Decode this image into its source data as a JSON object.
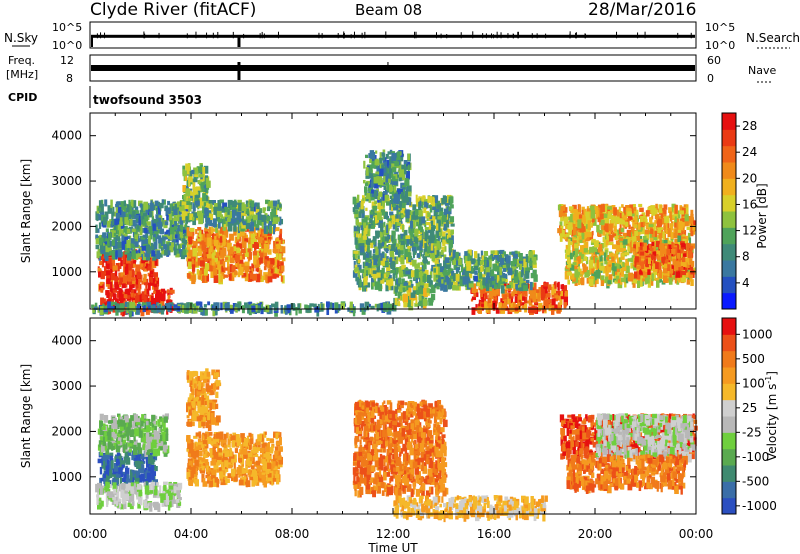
{
  "header": {
    "station": "Clyde River (fitACF)",
    "beam": "Beam 08",
    "date": "28/Mar/2016"
  },
  "noise_panel": {
    "left_label": "N.Sky",
    "left_ticks": [
      "10^5",
      "10^0"
    ],
    "right_ticks": [
      "10^5",
      "10^0"
    ],
    "right_label": "N.Search",
    "level": 0.45
  },
  "freq_panel": {
    "left_label_line1": "Freq.",
    "left_label_line2": "[MHz]",
    "left_ticks": [
      "12",
      "8"
    ],
    "right_ticks": [
      "60",
      "0"
    ],
    "right_label": "Nave",
    "level": 0.5
  },
  "cpid_panel": {
    "label": "CPID",
    "program": "twofsound 3503"
  },
  "chart_data": [
    {
      "type": "heatmap",
      "name": "power",
      "ylabel": "Slant Range [km]",
      "xlabel": "Time UT",
      "x_ticks": [
        "00:00",
        "04:00",
        "08:00",
        "12:00",
        "16:00",
        "20:00",
        "00:00"
      ],
      "xlim_hours": [
        0,
        24
      ],
      "ylim_km": [
        180,
        4500
      ],
      "y_ticks": [
        1000,
        2000,
        3000,
        4000
      ],
      "colorbar": {
        "label": "Power [dB]",
        "ticks": [
          4,
          8,
          12,
          16,
          20,
          24,
          28
        ],
        "range": [
          0,
          30
        ],
        "colors": [
          "#0a1aff",
          "#2450c0",
          "#3a78a0",
          "#3f8a78",
          "#4fa35a",
          "#8ec23e",
          "#d8d02a",
          "#f0b01e",
          "#f08a1a",
          "#f06418",
          "#ea3a14",
          "#e61010"
        ]
      },
      "regions": [
        {
          "t": [
            0.3,
            2.6
          ],
          "r": [
            700,
            1500
          ],
          "v": 27
        },
        {
          "t": [
            0.4,
            3.2
          ],
          "r": [
            180,
            650
          ],
          "v": 29
        },
        {
          "t": [
            0.2,
            3.8
          ],
          "r": [
            1400,
            2600
          ],
          "v": 9
        },
        {
          "t": [
            3.8,
            7.6
          ],
          "r": [
            900,
            2000
          ],
          "v": 22
        },
        {
          "t": [
            3.6,
            4.6
          ],
          "r": [
            2200,
            3400
          ],
          "v": 12
        },
        {
          "t": [
            4.5,
            7.5
          ],
          "r": [
            2000,
            2600
          ],
          "v": 10
        },
        {
          "t": [
            10.4,
            14.3
          ],
          "r": [
            700,
            2700
          ],
          "v": 11
        },
        {
          "t": [
            10.8,
            12.6
          ],
          "r": [
            2700,
            3700
          ],
          "v": 9
        },
        {
          "t": [
            12.0,
            13.5
          ],
          "r": [
            300,
            700
          ],
          "v": 13
        },
        {
          "t": [
            15.0,
            18.8
          ],
          "r": [
            200,
            800
          ],
          "v": 25
        },
        {
          "t": [
            14.3,
            17.6
          ],
          "r": [
            700,
            1500
          ],
          "v": 10
        },
        {
          "t": [
            18.5,
            23.9
          ],
          "r": [
            1800,
            2500
          ],
          "v": 20
        },
        {
          "t": [
            18.8,
            23.8
          ],
          "r": [
            800,
            1800
          ],
          "v": 17
        },
        {
          "t": [
            21.5,
            23.8
          ],
          "r": [
            1000,
            1700
          ],
          "v": 24
        },
        {
          "t": [
            0.0,
            12.0
          ],
          "r": [
            180,
            350
          ],
          "v": 8
        }
      ]
    },
    {
      "type": "heatmap",
      "name": "velocity",
      "ylabel": "Slant Range [km]",
      "xlabel": "Time UT",
      "x_ticks": [
        "00:00",
        "04:00",
        "08:00",
        "12:00",
        "16:00",
        "20:00",
        "00:00"
      ],
      "xlim_hours": [
        0,
        24
      ],
      "ylim_km": [
        180,
        4500
      ],
      "y_ticks": [
        1000,
        2000,
        3000,
        4000
      ],
      "colorbar": {
        "label": "Velocity [m s",
        "label_superscript": "-1",
        "label_close": "]",
        "ticks": [
          "1000",
          "500",
          "100",
          "25",
          "-25",
          "-100",
          "-500",
          "-1000"
        ],
        "colors": [
          "#2b4fc0",
          "#3a6ea8",
          "#3f8a70",
          "#5aaa50",
          "#6fcf3e",
          "#b8b8b8",
          "#cfcfcf",
          "#f5b82a",
          "#f59a20",
          "#f07a1a",
          "#ec5018",
          "#e61010"
        ]
      },
      "regions": [
        {
          "t": [
            0.3,
            2.6
          ],
          "r": [
            900,
            1600
          ],
          "v": 1
        },
        {
          "t": [
            0.3,
            3.0
          ],
          "r": [
            1600,
            2400
          ],
          "v": 4
        },
        {
          "t": [
            0.2,
            3.5
          ],
          "r": [
            400,
            900
          ],
          "v": 5
        },
        {
          "t": [
            3.8,
            7.5
          ],
          "r": [
            900,
            2000
          ],
          "v": 8
        },
        {
          "t": [
            3.8,
            5.0
          ],
          "r": [
            2200,
            3400
          ],
          "v": 8
        },
        {
          "t": [
            10.4,
            14.0
          ],
          "r": [
            700,
            2700
          ],
          "v": 9
        },
        {
          "t": [
            12.0,
            18.0
          ],
          "r": [
            180,
            600
          ],
          "v": 7
        },
        {
          "t": [
            18.6,
            23.9
          ],
          "r": [
            1500,
            2400
          ],
          "v": 10
        },
        {
          "t": [
            20.0,
            23.8
          ],
          "r": [
            1500,
            2400
          ],
          "v": 5
        },
        {
          "t": [
            18.8,
            23.5
          ],
          "r": [
            800,
            1500
          ],
          "v": 9
        }
      ]
    }
  ]
}
